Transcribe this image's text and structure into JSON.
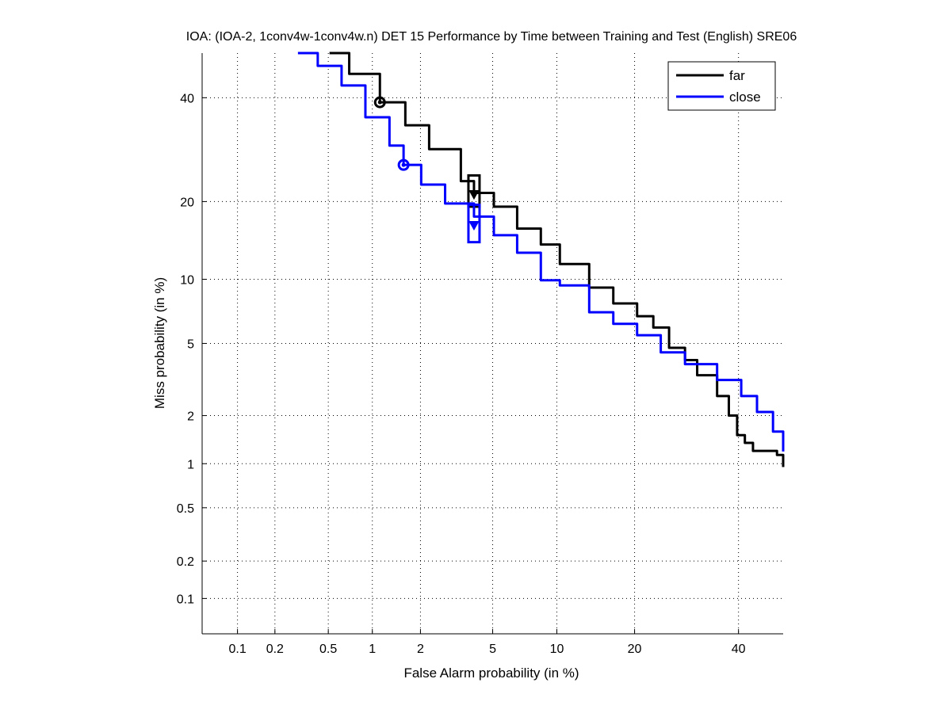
{
  "chart_data": {
    "type": "line",
    "title": "IOA: (IOA-2, 1conv4w-1conv4w.n) DET 15 Performance by Time between Training and Test (English) SRE06",
    "xlabel": "False Alarm probability (in %)",
    "ylabel": "Miss probability (in %)",
    "scale": "normal-deviate",
    "xlim": [
      0.05,
      50
    ],
    "ylim": [
      0.05,
      50
    ],
    "grid": true,
    "xticks": [
      0.1,
      0.2,
      0.5,
      1,
      2,
      5,
      10,
      20,
      40
    ],
    "xtick_labels": [
      "0.1",
      "0.2",
      "0.5",
      "1",
      "2",
      "5",
      "10",
      "20",
      "40"
    ],
    "yticks": [
      0.1,
      0.2,
      0.5,
      1,
      2,
      5,
      10,
      20,
      40
    ],
    "ytick_labels": [
      "0.1",
      "0.2",
      "0.5",
      "1",
      "2",
      "5",
      "10",
      "20",
      "40"
    ],
    "legend_position": "top-right",
    "series": [
      {
        "name": "far",
        "color": "#000000",
        "x": [
          0.51,
          0.7,
          1.12,
          1.62,
          2.25,
          3.4,
          4.0,
          5.07,
          6.6,
          8.5,
          10.3,
          13.6,
          16.8,
          20.4,
          23.1,
          25.9,
          28.9,
          31.3,
          35.4,
          37.9,
          39.7,
          41.4,
          43.2,
          48.6,
          50
        ],
        "y": [
          50,
          45.3,
          39,
          34.1,
          29.3,
          23.4,
          21.4,
          19.2,
          16,
          13.9,
          11.6,
          9.2,
          7.8,
          6.8,
          6.0,
          4.75,
          4.1,
          3.4,
          2.6,
          2.0,
          1.52,
          1.36,
          1.21,
          1.14,
          0.95
        ],
        "min_dcf_point": {
          "x": 1.12,
          "y": 39
        },
        "act_dcf_point": {
          "x": 4.0,
          "y": 21.2,
          "box_y": [
            19.2,
            24.4
          ]
        }
      },
      {
        "name": "close",
        "color": "#0000ff",
        "x": [
          0.3,
          0.42,
          0.62,
          0.9,
          1.29,
          1.58,
          2.02,
          2.78,
          4.0,
          5.07,
          6.6,
          8.5,
          10.3,
          13.6,
          16.8,
          20.4,
          24.4,
          28.9,
          35.4,
          40.6,
          44.1,
          47.7,
          50
        ],
        "y": [
          50,
          47.1,
          42.7,
          35.8,
          30,
          26.3,
          22.8,
          19.7,
          17.7,
          15.1,
          12.9,
          9.9,
          9.4,
          7.1,
          6.25,
          5.5,
          4.5,
          3.9,
          3.2,
          2.6,
          2.1,
          1.6,
          1.2
        ],
        "min_dcf_point": {
          "x": 1.58,
          "y": 26.3
        },
        "act_dcf_point": {
          "x": 4.0,
          "y": 16.5,
          "box_y": [
            14.2,
            19.5
          ]
        }
      }
    ]
  }
}
